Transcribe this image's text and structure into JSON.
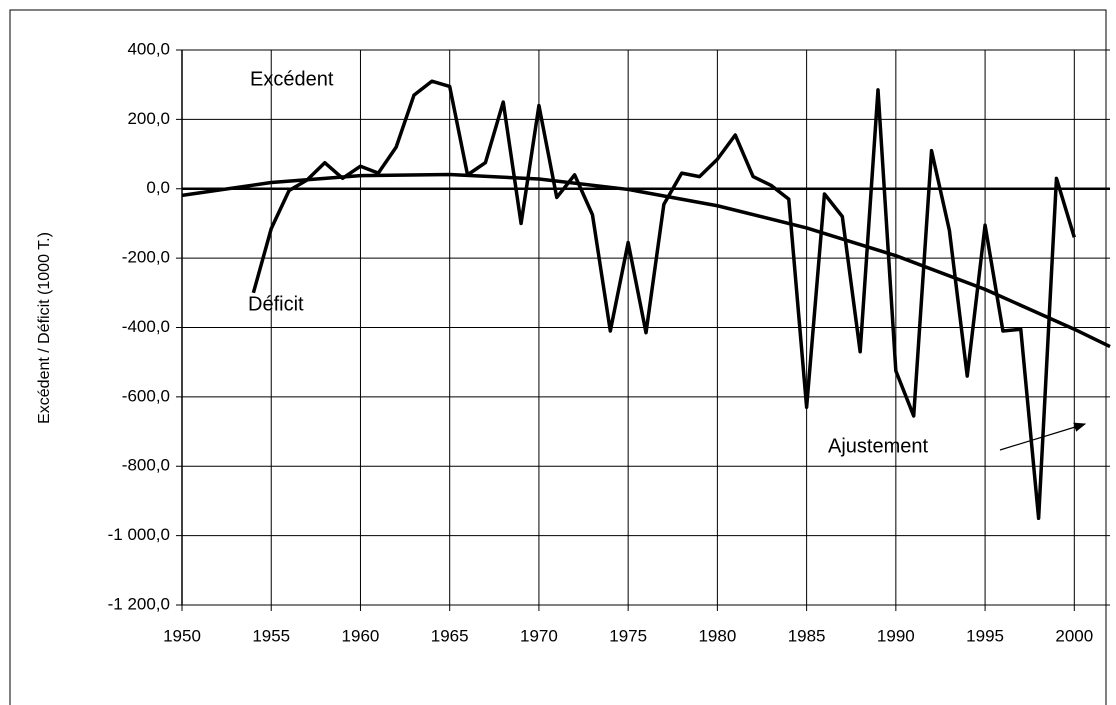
{
  "chart_data": {
    "type": "line",
    "y_label": "Excédent / Déficit (1000 T.)",
    "annotations": [
      "Excédent",
      "Déficit",
      "Ajustement"
    ],
    "xlim": [
      1950,
      2002
    ],
    "xticks": [
      1950,
      1955,
      1960,
      1965,
      1970,
      1975,
      1980,
      1985,
      1990,
      1995,
      2000
    ],
    "ylim": [
      -1200,
      400
    ],
    "yticks": [
      {
        "value": 400,
        "label": "400,0"
      },
      {
        "value": 200,
        "label": "200,0"
      },
      {
        "value": 0,
        "label": "0,0"
      },
      {
        "value": -200,
        "label": "-200,0"
      },
      {
        "value": -400,
        "label": "-400,0"
      },
      {
        "value": -600,
        "label": "-600,0"
      },
      {
        "value": -800,
        "label": "-800,0"
      },
      {
        "value": -1000,
        "label": "-1 000,0"
      },
      {
        "value": -1200,
        "label": "-1 200,0"
      }
    ],
    "grid": true,
    "series": [
      {
        "color": "#000000",
        "x": [
          1954,
          1955,
          1956,
          1957,
          1958,
          1959,
          1960,
          1961,
          1962,
          1963,
          1964,
          1965,
          1966,
          1967,
          1968,
          1969,
          1970,
          1971,
          1972,
          1973,
          1974,
          1975,
          1976,
          1977,
          1978,
          1979,
          1980,
          1981,
          1982,
          1983,
          1984,
          1985,
          1986,
          1987,
          1988,
          1989,
          1990,
          1991,
          1992,
          1993,
          1994,
          1995,
          1996,
          1997,
          1998,
          1999,
          2000
        ],
        "values": [
          -300,
          -115,
          -5,
          25,
          75,
          30,
          65,
          45,
          120,
          270,
          310,
          295,
          40,
          75,
          250,
          -100,
          240,
          -25,
          40,
          -75,
          -410,
          -155,
          -415,
          -45,
          45,
          35,
          85,
          155,
          35,
          10,
          -30,
          -630,
          -15,
          -80,
          -470,
          285,
          -525,
          -655,
          110,
          -120,
          -540,
          -105,
          -410,
          -405,
          -950,
          30,
          -140
        ]
      },
      {
        "color": "#000000",
        "x": [
          1950,
          1955,
          1960,
          1965,
          1970,
          1975,
          1980,
          1985,
          1990,
          1995,
          2000,
          2002
        ],
        "values": [
          -19,
          18,
          38,
          41,
          28,
          -2,
          -49,
          -113,
          -193,
          -290,
          -405,
          -455
        ]
      }
    ]
  }
}
